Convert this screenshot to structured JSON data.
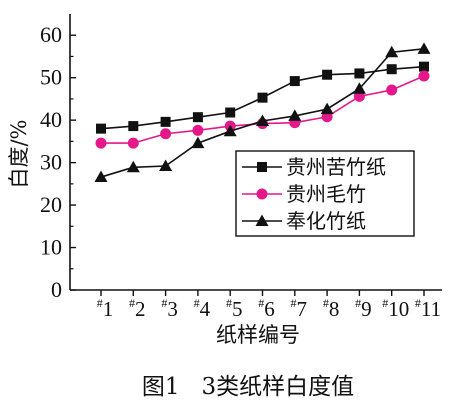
{
  "chart_data": {
    "type": "line",
    "title": "",
    "caption": "图1   3类纸样白度值",
    "xlabel": "纸样编号",
    "ylabel": "白度/%",
    "ylim": [
      0,
      65
    ],
    "yticks": [
      "0",
      "10",
      "20",
      "30",
      "40",
      "50",
      "60"
    ],
    "categories": [
      "#1",
      "#2",
      "#3",
      "#4",
      "#5",
      "#6",
      "#7",
      "#8",
      "#9",
      "#10",
      "#11"
    ],
    "series": [
      {
        "name": "贵州苦竹纸",
        "marker": "square",
        "color": "#111111",
        "values": [
          38.0,
          38.6,
          39.6,
          40.7,
          41.8,
          45.3,
          49.2,
          50.7,
          51.0,
          52.0,
          52.6
        ]
      },
      {
        "name": "贵州毛竹",
        "marker": "circle",
        "color": "#e4188a",
        "values": [
          34.6,
          34.6,
          36.8,
          37.6,
          38.6,
          39.2,
          39.4,
          40.8,
          45.6,
          47.1,
          50.4
        ]
      },
      {
        "name": "奉化竹纸",
        "marker": "triangle",
        "color": "#111111",
        "values": [
          26.6,
          28.9,
          29.2,
          34.6,
          37.4,
          39.8,
          41.0,
          42.6,
          47.4,
          56.0,
          56.8
        ]
      }
    ],
    "legend_position": "center-right",
    "grid": false
  }
}
